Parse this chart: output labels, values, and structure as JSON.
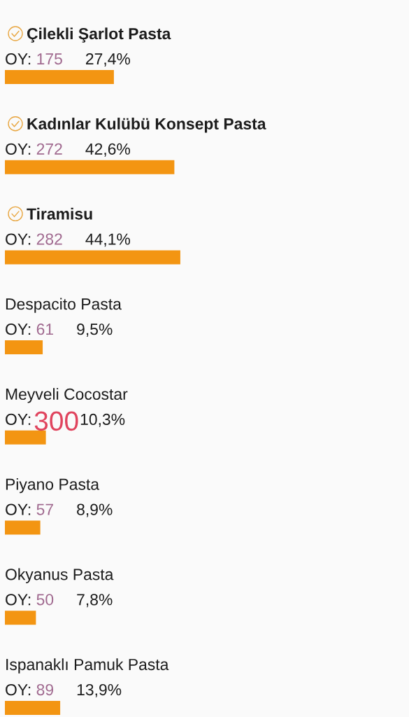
{
  "chart_data": {
    "type": "bar",
    "orientation": "horizontal",
    "categories": [
      "Çilekli Şarlot Pasta",
      "Kadınlar Kulübü Konsept Pasta",
      "Tiramisu",
      "Despacito Pasta",
      "Meyveli Cocostar",
      "Piyano Pasta",
      "Okyanus Pasta",
      "Ispanaklı Pamuk Pasta"
    ],
    "values": [
      27.4,
      42.6,
      44.1,
      9.5,
      10.3,
      8.9,
      7.8,
      13.9
    ],
    "value_labels": [
      "27,4%",
      "42,6%",
      "44,1%",
      "9,5%",
      "10,3%",
      "8,9%",
      "7,8%",
      "13,9%"
    ],
    "color": "#f39512",
    "tick_labels": false,
    "annotations": [
      {
        "text": "OY: 175",
        "y": "Çilekli Şarlot Pasta"
      },
      {
        "text": "OY: 272",
        "y": "Kadınlar Kulübü Konsept Pasta"
      },
      {
        "text": "OY: 282",
        "y": "Tiramisu"
      },
      {
        "text": "OY: 61",
        "y": "Despacito Pasta"
      },
      {
        "text": "OY:",
        "y": "Meyveli Cocostar"
      },
      "300",
      {
        "text": "OY: 57",
        "y": "Piyano Pasta"
      },
      {
        "text": "OY: 50",
        "y": "Okyanus Pasta"
      },
      {
        "text": "OY: 89",
        "y": "Ispanaklı Pamuk Pasta"
      }
    ]
  }
}
